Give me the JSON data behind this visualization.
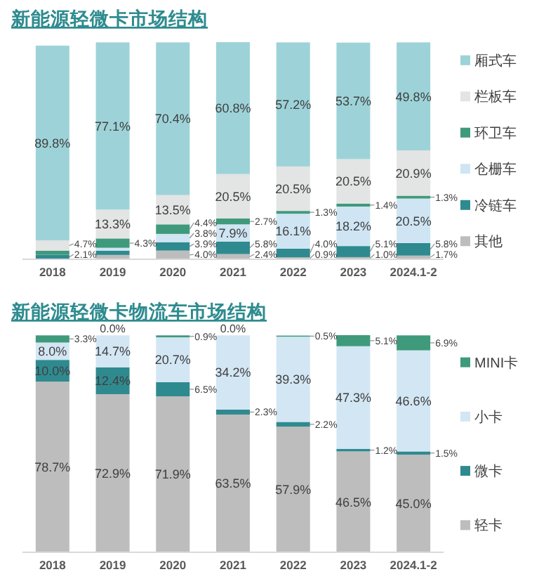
{
  "chart_data": [
    {
      "type": "bar",
      "title": "新能源轻微卡市场结构",
      "categories": [
        "2018",
        "2019",
        "2020",
        "2021",
        "2022",
        "2023",
        "2024.1-2"
      ],
      "stacked": true,
      "legend": "right",
      "series": [
        {
          "name": "其他",
          "color": "#bdbdbd",
          "values": [
            null,
            2.0,
            4.0,
            2.4,
            0.9,
            1.0,
            1.7
          ],
          "value_labels": [
            null,
            null,
            "4.0%",
            "2.4%",
            "0.9%",
            "1.0%",
            "1.7%"
          ]
        },
        {
          "name": "冷链车",
          "color": "#2f8a8f",
          "values": [
            2.1,
            2.0,
            3.9,
            5.8,
            4.0,
            5.1,
            5.8
          ],
          "value_labels": [
            "2.1%",
            null,
            "3.9%",
            "5.8%",
            "4.0%",
            "5.1%",
            "5.8%"
          ]
        },
        {
          "name": "仓栅车",
          "color": "#cfe5f3",
          "values": [
            null,
            1.3,
            3.8,
            7.9,
            16.1,
            18.2,
            20.5
          ],
          "value_labels": [
            null,
            null,
            "3.8%",
            "7.9%",
            "16.1%",
            "18.2%",
            "20.5%"
          ]
        },
        {
          "name": "环卫车",
          "color": "#3f9a7c",
          "values": [
            1.9,
            4.3,
            4.4,
            2.7,
            1.3,
            1.4,
            1.3
          ],
          "value_labels": [
            null,
            "4.3%",
            "4.4%",
            "2.7%",
            "1.3%",
            "1.4%",
            "1.3%"
          ]
        },
        {
          "name": "栏板车",
          "color": "#e3e4e4",
          "values": [
            4.7,
            13.3,
            13.5,
            20.5,
            20.5,
            20.5,
            20.9
          ],
          "value_labels": [
            "4.7%",
            "13.3%",
            "13.5%",
            "20.5%",
            "20.5%",
            "20.5%",
            "20.9%"
          ]
        },
        {
          "name": "厢式车",
          "color": "#9dd3d8",
          "values": [
            89.8,
            77.1,
            70.4,
            60.8,
            57.2,
            53.7,
            49.8
          ],
          "value_labels": [
            "89.8%",
            "77.1%",
            "70.4%",
            "60.8%",
            "57.2%",
            "53.7%",
            "49.8%"
          ]
        }
      ]
    },
    {
      "type": "bar",
      "title": "新能源轻微卡物流车市场结构",
      "categories": [
        "2018",
        "2019",
        "2020",
        "2021",
        "2022",
        "2023",
        "2024.1-2"
      ],
      "stacked": true,
      "legend": "right",
      "series": [
        {
          "name": "轻卡",
          "color": "#bdbdbd",
          "values": [
            78.7,
            72.9,
            71.9,
            63.5,
            57.9,
            46.5,
            45.0
          ],
          "value_labels": [
            "78.7%",
            "72.9%",
            "71.9%",
            "63.5%",
            "57.9%",
            "46.5%",
            "45.0%"
          ]
        },
        {
          "name": "微卡",
          "color": "#2f8a8f",
          "values": [
            10.0,
            12.4,
            6.5,
            2.3,
            2.2,
            1.2,
            1.5
          ],
          "value_labels": [
            "10.0%",
            "12.4%",
            "6.5%",
            "2.3%",
            "2.2%",
            "1.2%",
            "1.5%"
          ]
        },
        {
          "name": "小卡",
          "color": "#d3e6f4",
          "values": [
            8.0,
            14.7,
            20.7,
            34.2,
            39.3,
            47.3,
            46.6
          ],
          "value_labels": [
            "8.0%",
            "14.7%",
            "20.7%",
            "34.2%",
            "39.3%",
            "47.3%",
            "46.6%"
          ]
        },
        {
          "name": "MINI卡",
          "color": "#3f9a7c",
          "values": [
            3.3,
            0.0,
            0.9,
            0.0,
            0.5,
            5.1,
            6.9
          ],
          "value_labels": [
            "3.3%",
            "0.0%",
            "0.9%",
            "0.0%",
            "0.5%",
            "5.1%",
            "6.9%"
          ]
        }
      ]
    }
  ]
}
